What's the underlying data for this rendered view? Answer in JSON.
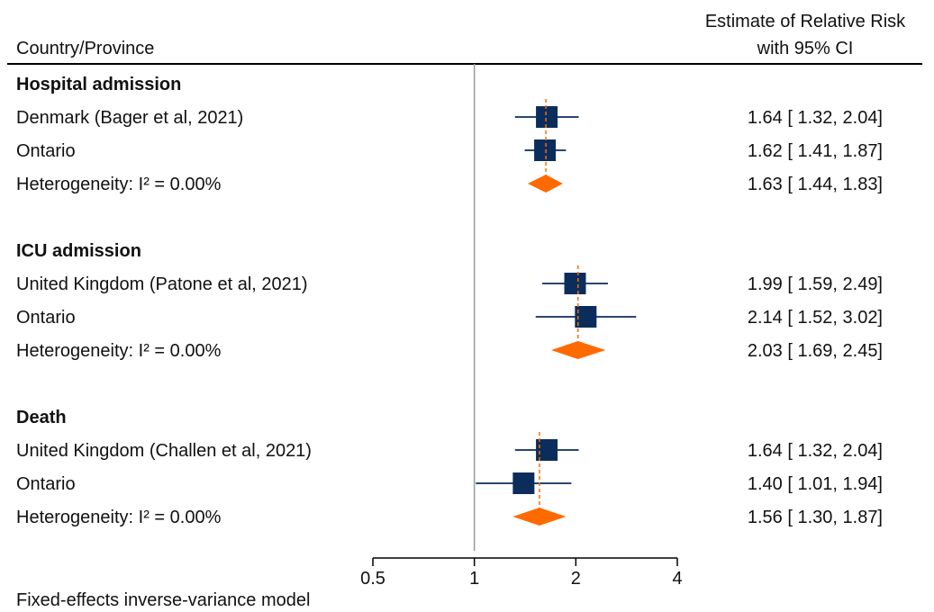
{
  "header": {
    "left": "Country/Province",
    "right_line1": "Estimate of Relative Risk",
    "right_line2": "with 95% CI"
  },
  "footer": "Fixed-effects inverse-variance model",
  "colors": {
    "study": "#0b2d5b",
    "pooled": "#ff6a00",
    "pooled_line": "#ff6a00",
    "ref_line": "#9a9a9a"
  },
  "chart_data": {
    "type": "forest",
    "xscale": "log",
    "xlim": [
      0.5,
      4
    ],
    "xticks": [
      0.5,
      1,
      2,
      4
    ],
    "xtick_labels": [
      "0.5",
      "1",
      "2",
      "4"
    ],
    "reference_line": 1,
    "groups": [
      {
        "title": "Hospital admission",
        "studies": [
          {
            "label": "Denmark (Bager et al, 2021)",
            "estimate": 1.64,
            "lower": 1.32,
            "upper": 2.04,
            "text": "1.64 [ 1.32,  2.04]"
          },
          {
            "label": "Ontario",
            "estimate": 1.62,
            "lower": 1.41,
            "upper": 1.87,
            "text": "1.62 [ 1.41,  1.87]"
          }
        ],
        "pooled": {
          "label": "Heterogeneity: I² = 0.00%",
          "estimate": 1.63,
          "lower": 1.44,
          "upper": 1.83,
          "text": "1.63 [ 1.44,  1.83]"
        }
      },
      {
        "title": "ICU admission",
        "studies": [
          {
            "label": "United Kingdom (Patone et al, 2021)",
            "estimate": 1.99,
            "lower": 1.59,
            "upper": 2.49,
            "text": "1.99 [ 1.59,  2.49]"
          },
          {
            "label": "Ontario",
            "estimate": 2.14,
            "lower": 1.52,
            "upper": 3.02,
            "text": "2.14 [ 1.52,  3.02]"
          }
        ],
        "pooled": {
          "label": "Heterogeneity: I² = 0.00%",
          "estimate": 2.03,
          "lower": 1.69,
          "upper": 2.45,
          "text": "2.03 [ 1.69,  2.45]"
        }
      },
      {
        "title": "Death",
        "studies": [
          {
            "label": "United Kingdom (Challen et al, 2021)",
            "estimate": 1.64,
            "lower": 1.32,
            "upper": 2.04,
            "text": "1.64 [ 1.32,  2.04]"
          },
          {
            "label": "Ontario",
            "estimate": 1.4,
            "lower": 1.01,
            "upper": 1.94,
            "text": "1.40 [ 1.01,  1.94]"
          }
        ],
        "pooled": {
          "label": "Heterogeneity: I² = 0.00%",
          "estimate": 1.56,
          "lower": 1.3,
          "upper": 1.87,
          "text": "1.56 [ 1.30,  1.87]"
        }
      }
    ]
  }
}
